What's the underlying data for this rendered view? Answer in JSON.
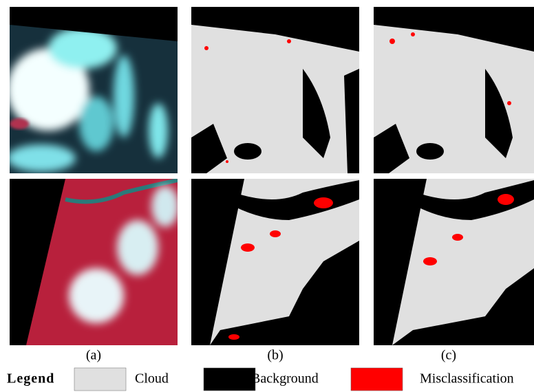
{
  "panels": [
    {
      "label": "(a)"
    },
    {
      "label": "(b)"
    },
    {
      "label": "(c)"
    }
  ],
  "legend": {
    "title": "Legend",
    "items": [
      {
        "label": "Cloud",
        "color": "#e0e0e0"
      },
      {
        "label": "Background",
        "color": "#000000"
      },
      {
        "label": "Misclassification",
        "color": "#ff0000"
      }
    ]
  }
}
